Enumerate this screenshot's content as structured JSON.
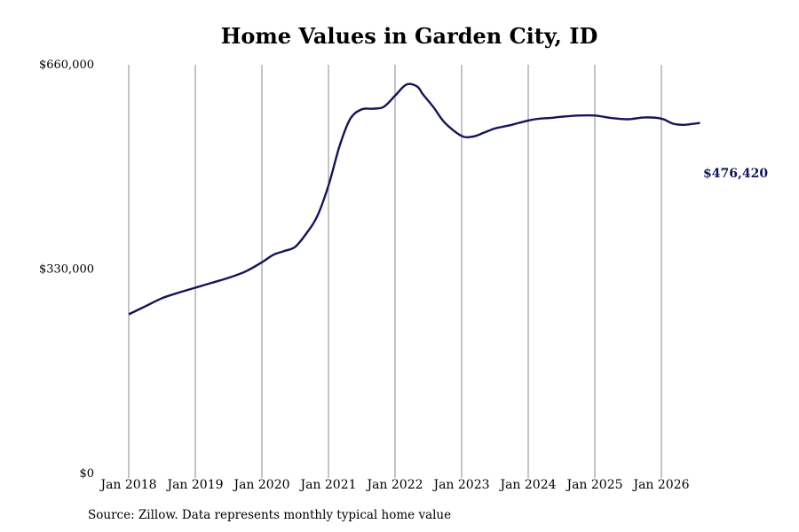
{
  "chart_data": {
    "type": "line",
    "title": "Home Values in Garden City, ID",
    "xlabel": "",
    "ylabel": "",
    "ylim": [
      0,
      660000
    ],
    "y_ticks": [
      {
        "value": 0,
        "label": "$0"
      },
      {
        "value": 330000,
        "label": "$330,000"
      },
      {
        "value": 660000,
        "label": "$660,000"
      }
    ],
    "x_ticks": [
      {
        "value": 2018,
        "label": "Jan 2018"
      },
      {
        "value": 2019,
        "label": "Jan 2019"
      },
      {
        "value": 2020,
        "label": "Jan 2020"
      },
      {
        "value": 2021,
        "label": "Jan 2021"
      },
      {
        "value": 2022,
        "label": "Jan 2022"
      },
      {
        "value": 2023,
        "label": "Jan 2023"
      },
      {
        "value": 2024,
        "label": "Jan 2024"
      },
      {
        "value": 2025,
        "label": "Jan 2025"
      },
      {
        "value": 2026,
        "label": "Jan 2026"
      }
    ],
    "xlim": [
      2018,
      2026.6
    ],
    "grid": "vertical",
    "series": [
      {
        "color": "#14145a",
        "x": [
          2018.0,
          2018.25,
          2018.5,
          2018.75,
          2019.0,
          2019.25,
          2019.5,
          2019.75,
          2020.0,
          2020.17,
          2020.33,
          2020.5,
          2020.67,
          2020.83,
          2021.0,
          2021.17,
          2021.33,
          2021.5,
          2021.67,
          2021.83,
          2022.0,
          2022.17,
          2022.33,
          2022.42,
          2022.58,
          2022.75,
          2023.0,
          2023.17,
          2023.33,
          2023.5,
          2023.75,
          2024.0,
          2024.17,
          2024.33,
          2024.5,
          2024.75,
          2025.0,
          2025.25,
          2025.5,
          2025.75,
          2026.0,
          2026.17,
          2026.33,
          2026.5,
          2026.58
        ],
        "values": [
          257000,
          270000,
          283000,
          292000,
          300000,
          308000,
          316000,
          326000,
          341000,
          353000,
          359000,
          366000,
          388000,
          415000,
          465000,
          530000,
          573000,
          588000,
          589000,
          592000,
          610000,
          628000,
          625000,
          612000,
          591000,
          566000,
          545000,
          544000,
          550000,
          557000,
          563000,
          570000,
          573000,
          574000,
          576000,
          578000,
          578000,
          574000,
          572000,
          575000,
          573000,
          565000,
          563000,
          565000,
          566000
        ]
      }
    ],
    "annotations": [
      {
        "text": "$476,420"
      }
    ],
    "source_note": "Source: Zillow. Data represents monthly typical home value"
  }
}
